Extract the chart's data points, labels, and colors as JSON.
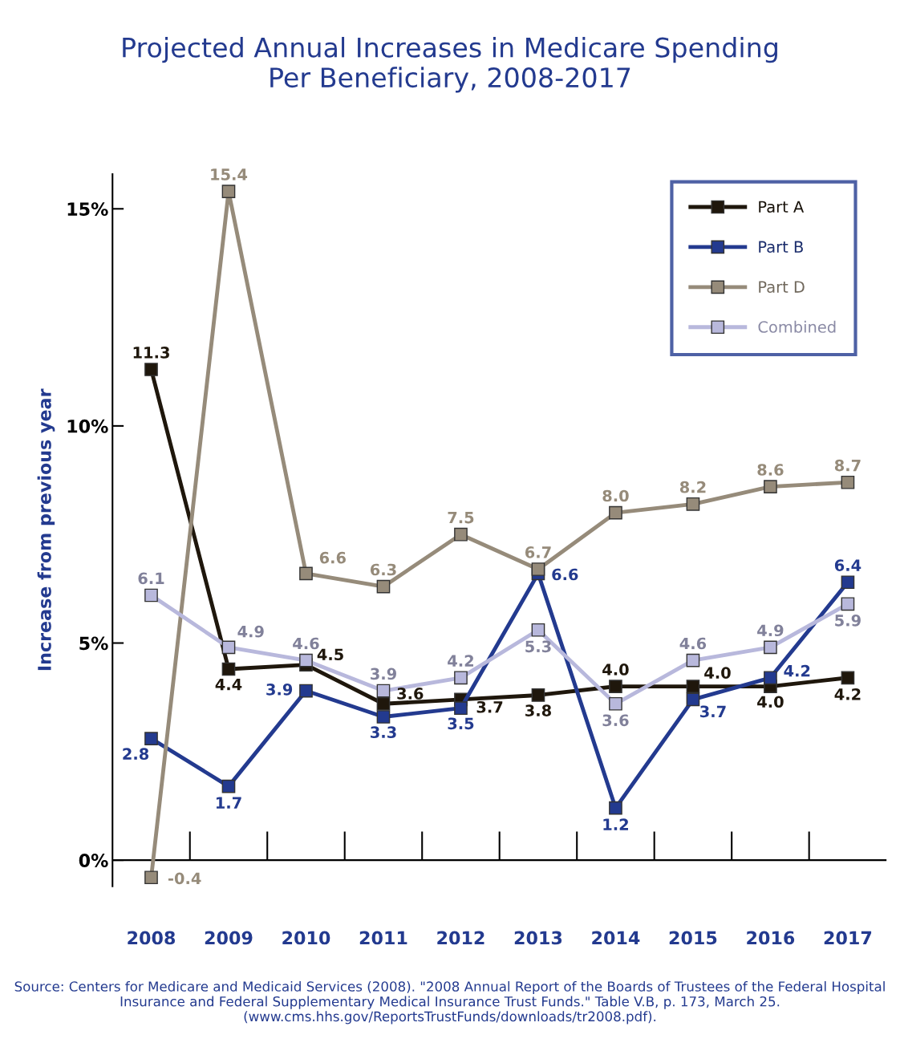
{
  "chart_data": {
    "type": "line",
    "title": "Projected Annual Increases in Medicare Spending\nPer Beneficiary, 2008-2017",
    "ylabel": "Increase from previous year",
    "categories": [
      "2008",
      "2009",
      "2010",
      "2011",
      "2012",
      "2013",
      "2014",
      "2015",
      "2016",
      "2017"
    ],
    "series": [
      {
        "name": "Part A",
        "color": "#1f170c",
        "values": [
          11.3,
          4.4,
          4.5,
          3.6,
          3.7,
          3.8,
          4.0,
          4.0,
          4.0,
          4.2
        ],
        "value_labels": [
          "11.3",
          "4.4",
          "4.5",
          "3.6",
          "3.7",
          "3.8",
          "4.0",
          "4.0",
          "4.0",
          "4.2"
        ]
      },
      {
        "name": "Part B",
        "color": "#233a8f",
        "values": [
          2.8,
          1.7,
          3.9,
          3.3,
          3.5,
          6.6,
          1.2,
          3.7,
          4.2,
          6.4
        ],
        "value_labels": [
          "2.8",
          "1.7",
          "3.9",
          "3.3",
          "3.5",
          "6.6",
          "1.2",
          "3.7",
          "4.2",
          "6.4"
        ]
      },
      {
        "name": "Part D",
        "color": "#968b7a",
        "values": [
          -0.4,
          15.4,
          6.6,
          6.3,
          7.5,
          6.7,
          8.0,
          8.2,
          8.6,
          8.7
        ],
        "value_labels": [
          "-0.4",
          "15.4",
          "6.6",
          "6.3",
          "7.5",
          "6.7",
          "8.0",
          "8.2",
          "8.6",
          "8.7"
        ]
      },
      {
        "name": "Combined",
        "color": "#b8b8dc",
        "values": [
          6.1,
          4.9,
          4.6,
          3.9,
          4.2,
          5.3,
          3.6,
          4.6,
          4.9,
          5.9
        ],
        "value_labels": [
          "6.1",
          "4.9",
          "4.6",
          "3.9",
          "4.2",
          "5.3",
          "3.6",
          "4.6",
          "4.9",
          "5.9"
        ]
      }
    ],
    "ylim": [
      -0.6,
      15.8
    ],
    "yticks": [
      {
        "value": 0,
        "label": "0%"
      },
      {
        "value": 5,
        "label": "5%"
      },
      {
        "value": 10,
        "label": "10%"
      },
      {
        "value": 15,
        "label": "15%"
      }
    ],
    "ref_lines": [
      {
        "axis": "y",
        "value": 0,
        "color": "#000000"
      }
    ],
    "marker": "square",
    "line_style": "solid",
    "legend": "top right",
    "annotations": [
      "Source: Centers for Medicare and Medicaid Services (2008). \"2008 Annual Report of the Boards of Trustees of the Federal Hospital Insurance and Federal Supplementary Medical Insurance Trust Funds.\" Table V.B, p. 173, March 25. (www.cms.hhs.gov/ReportsTrustFunds/downloads/tr2008.pdf)."
    ]
  }
}
